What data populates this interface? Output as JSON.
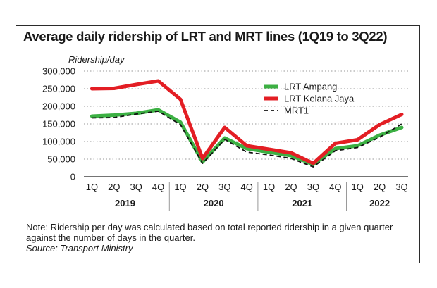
{
  "chart_data": {
    "type": "line",
    "title": "Average daily ridership of LRT and MRT lines (1Q19 to 3Q22)",
    "ylabel": "Ridership/day",
    "ylim": [
      0,
      300000
    ],
    "yticks": [
      0,
      50000,
      100000,
      150000,
      200000,
      250000,
      300000
    ],
    "ytick_labels": [
      "0",
      "50,000",
      "100,000",
      "150,000",
      "200,000",
      "250,000",
      "300,000"
    ],
    "categories": [
      "1Q",
      "2Q",
      "3Q",
      "4Q",
      "1Q",
      "2Q",
      "3Q",
      "4Q",
      "1Q",
      "2Q",
      "3Q",
      "4Q",
      "1Q",
      "2Q",
      "3Q"
    ],
    "years": [
      {
        "label": "2019",
        "start": 0,
        "end": 3
      },
      {
        "label": "2020",
        "start": 4,
        "end": 7
      },
      {
        "label": "2021",
        "start": 8,
        "end": 11
      },
      {
        "label": "2022",
        "start": 12,
        "end": 14
      }
    ],
    "grid": "horizontal dotted",
    "legend_position": "top-right",
    "series": [
      {
        "name": "LRT Ampang",
        "color": "#3cb043",
        "style": "solid",
        "values": [
          172000,
          175000,
          180000,
          190000,
          155000,
          42000,
          110000,
          80000,
          70000,
          60000,
          35000,
          80000,
          88000,
          118000,
          140000
        ]
      },
      {
        "name": "LRT Kelana Jaya",
        "color": "#e31e24",
        "style": "solid",
        "values": [
          250000,
          251000,
          262000,
          272000,
          220000,
          52000,
          140000,
          88000,
          78000,
          68000,
          38000,
          95000,
          105000,
          148000,
          177000
        ]
      },
      {
        "name": "MRT1",
        "color": "#111111",
        "style": "dashed",
        "values": [
          167000,
          168000,
          178000,
          186000,
          148000,
          38000,
          106000,
          70000,
          62000,
          52000,
          28000,
          74000,
          83000,
          112000,
          150000
        ]
      }
    ]
  },
  "note": "Note: Ridership per day was calculated based on total reported ridership in a given quarter against the number of days in the quarter.",
  "source": "Source: Transport Ministry"
}
